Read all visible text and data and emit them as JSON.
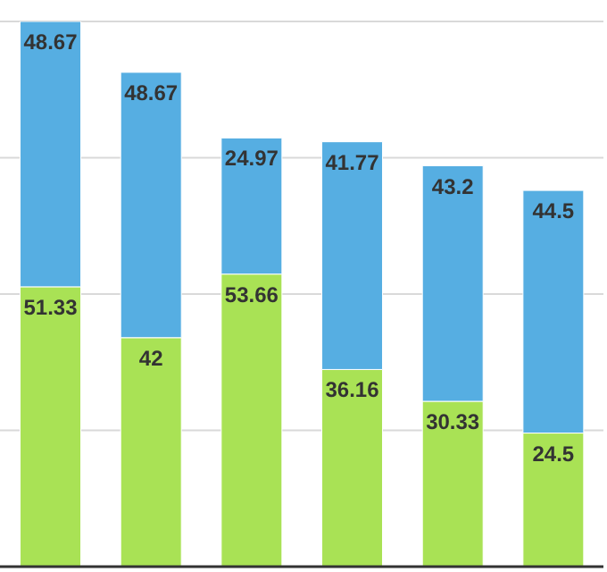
{
  "chart_data": {
    "type": "bar",
    "stacked": true,
    "categories": [
      null,
      null,
      null,
      null,
      null,
      null
    ],
    "series": [
      {
        "color": "#a9e255",
        "values": [
          51.33,
          42,
          53.66,
          36.16,
          30.33,
          24.5
        ]
      },
      {
        "color": "#56aee2",
        "values": [
          48.67,
          48.67,
          24.97,
          41.77,
          43.2,
          44.5
        ]
      }
    ],
    "ylim": [
      0,
      100
    ],
    "grid": "y",
    "tick_labels": false,
    "data_labels": true
  }
}
